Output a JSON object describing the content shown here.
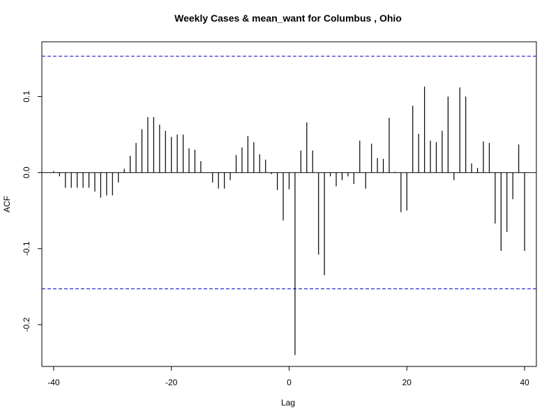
{
  "chart_data": {
    "type": "bar",
    "title": "Weekly Cases & mean_want for Columbus , Ohio",
    "xlabel": "Lag",
    "ylabel": "ACF",
    "xlim": [
      -42,
      42
    ],
    "ylim": [
      -0.255,
      0.172
    ],
    "x_ticks": [
      -40,
      -20,
      0,
      20,
      40
    ],
    "y_ticks": [
      -0.2,
      -0.1,
      0.0,
      0.1
    ],
    "y_tick_labels": [
      "-0.2",
      "-0.1",
      "0.0",
      "0.1"
    ],
    "confidence_bound": 0.153,
    "colors": {
      "bars": "#000000",
      "confidence": "#0000cc",
      "zero_line": "#000000"
    },
    "lags": [
      -40,
      -39,
      -38,
      -37,
      -36,
      -35,
      -34,
      -33,
      -32,
      -31,
      -30,
      -29,
      -28,
      -27,
      -26,
      -25,
      -24,
      -23,
      -22,
      -21,
      -20,
      -19,
      -18,
      -17,
      -16,
      -15,
      -14,
      -13,
      -12,
      -11,
      -10,
      -9,
      -8,
      -7,
      -6,
      -5,
      -4,
      -3,
      -2,
      -1,
      0,
      1,
      2,
      3,
      4,
      5,
      6,
      7,
      8,
      9,
      10,
      11,
      12,
      13,
      14,
      15,
      16,
      17,
      18,
      19,
      20,
      21,
      22,
      23,
      24,
      25,
      26,
      27,
      28,
      29,
      30,
      31,
      32,
      33,
      34,
      35,
      36,
      37,
      38,
      39,
      40
    ],
    "values": [
      0.002,
      -0.005,
      -0.02,
      -0.02,
      -0.02,
      -0.02,
      -0.02,
      -0.025,
      -0.033,
      -0.03,
      -0.03,
      -0.013,
      0.005,
      0.022,
      0.039,
      0.057,
      0.073,
      0.073,
      0.063,
      0.055,
      0.047,
      0.05,
      0.05,
      0.032,
      0.03,
      0.015,
      0.0,
      -0.013,
      -0.021,
      -0.021,
      -0.01,
      0.023,
      0.033,
      0.048,
      0.04,
      0.024,
      0.017,
      -0.002,
      -0.023,
      -0.063,
      -0.022,
      -0.24,
      0.029,
      0.066,
      0.029,
      -0.108,
      -0.135,
      -0.005,
      -0.018,
      -0.01,
      -0.005,
      -0.015,
      0.042,
      -0.021,
      0.038,
      0.019,
      0.018,
      0.072,
      0.001,
      -0.052,
      -0.05,
      0.088,
      0.051,
      0.113,
      0.042,
      0.04,
      0.055,
      0.1,
      -0.01,
      0.112,
      0.1,
      0.012,
      0.006,
      0.041,
      0.039,
      -0.067,
      -0.103,
      -0.078,
      -0.035,
      0.037,
      -0.103
    ]
  }
}
